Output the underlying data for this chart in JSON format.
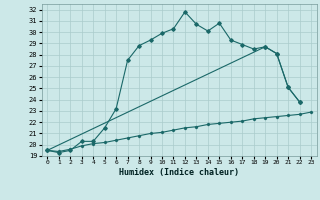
{
  "xlabel": "Humidex (Indice chaleur)",
  "xlim": [
    -0.5,
    23.5
  ],
  "ylim": [
    19,
    32.5
  ],
  "yticks": [
    19,
    20,
    21,
    22,
    23,
    24,
    25,
    26,
    27,
    28,
    29,
    30,
    31,
    32
  ],
  "xticks": [
    0,
    1,
    2,
    3,
    4,
    5,
    6,
    7,
    8,
    9,
    10,
    11,
    12,
    13,
    14,
    15,
    16,
    17,
    18,
    19,
    20,
    21,
    22,
    23
  ],
  "bg_color": "#cce8e8",
  "grid_color": "#aacccc",
  "line_color": "#1a6868",
  "line1_x": [
    0,
    1,
    2,
    3,
    4,
    5,
    6,
    7,
    8,
    9,
    10,
    11,
    12,
    13,
    14,
    15,
    16,
    17,
    18,
    19,
    20,
    21,
    22
  ],
  "line1_y": [
    19.5,
    19.3,
    19.5,
    20.3,
    20.3,
    21.5,
    23.2,
    27.5,
    28.8,
    29.3,
    29.9,
    30.3,
    31.8,
    30.7,
    30.1,
    30.8,
    29.3,
    28.9,
    28.5,
    28.7,
    28.1,
    25.1,
    23.8
  ],
  "line2_x": [
    0,
    19,
    20,
    21,
    22
  ],
  "line2_y": [
    19.5,
    28.7,
    28.1,
    25.1,
    23.8
  ],
  "line3_x": [
    0,
    1,
    2,
    3,
    4,
    5,
    6,
    7,
    8,
    9,
    10,
    11,
    12,
    13,
    14,
    15,
    16,
    17,
    18,
    19,
    20,
    21,
    22,
    23
  ],
  "line3_y": [
    19.5,
    19.4,
    19.6,
    19.9,
    20.1,
    20.2,
    20.4,
    20.6,
    20.8,
    21.0,
    21.1,
    21.3,
    21.5,
    21.6,
    21.8,
    21.9,
    22.0,
    22.1,
    22.3,
    22.4,
    22.5,
    22.6,
    22.7,
    22.9
  ]
}
